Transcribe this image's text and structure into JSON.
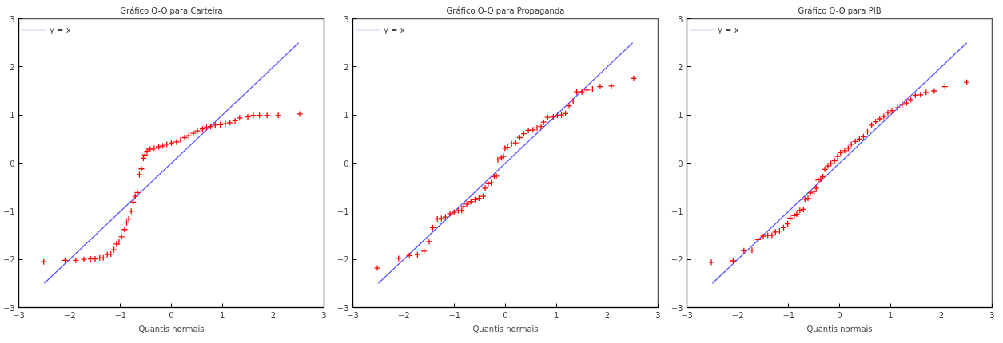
{
  "chart_data": [
    {
      "type": "scatter",
      "title": "Gráfico Q-Q para Carteira",
      "xlabel": "Quantis normais",
      "xlim": [
        -3,
        3
      ],
      "ylim": [
        -3,
        3
      ],
      "xticks": [
        -3,
        -2,
        -1,
        0,
        1,
        2,
        3
      ],
      "yticks": [
        -3,
        -2,
        -1,
        0,
        1,
        2,
        3
      ],
      "grid": false,
      "legend": "top left",
      "series": [
        {
          "type": "line",
          "name": "y = x",
          "color": "#5555ff",
          "x": [
            -2.5,
            2.5
          ],
          "values": [
            -2.5,
            2.5
          ]
        },
        {
          "type": "scatter",
          "color": "#ff0000",
          "marker": "cross",
          "x": [
            -2.51,
            -2.09,
            -1.88,
            -1.72,
            -1.59,
            -1.5,
            -1.41,
            -1.34,
            -1.26,
            -1.19,
            -1.13,
            -1.08,
            -1.03,
            -0.98,
            -0.92,
            -0.88,
            -0.84,
            -0.79,
            -0.75,
            -0.71,
            -0.67,
            -0.63,
            -0.59,
            -0.55,
            -0.52,
            -0.48,
            -0.42,
            -0.34,
            -0.25,
            -0.17,
            -0.09,
            0,
            0.1,
            0.18,
            0.26,
            0.34,
            0.43,
            0.51,
            0.61,
            0.69,
            0.77,
            0.86,
            0.96,
            1.06,
            1.15,
            1.25,
            1.34,
            1.5,
            1.61,
            1.73,
            1.88,
            2.1,
            2.52
          ],
          "values": [
            -2.05,
            -2.02,
            -2.02,
            -2.0,
            -1.99,
            -1.99,
            -1.97,
            -1.97,
            -1.9,
            -1.89,
            -1.8,
            -1.68,
            -1.64,
            -1.53,
            -1.38,
            -1.24,
            -1.16,
            -1.0,
            -0.81,
            -0.69,
            -0.61,
            -0.24,
            -0.12,
            0.1,
            0.17,
            0.25,
            0.29,
            0.31,
            0.34,
            0.36,
            0.39,
            0.42,
            0.44,
            0.48,
            0.53,
            0.57,
            0.62,
            0.67,
            0.71,
            0.74,
            0.76,
            0.79,
            0.8,
            0.82,
            0.84,
            0.88,
            0.94,
            0.96,
            0.99,
            0.99,
            0.99,
            0.99,
            1.02
          ]
        }
      ]
    },
    {
      "type": "scatter",
      "title": "Gráfico Q-Q para Propaganda",
      "xlabel": "Quantis normais",
      "xlim": [
        -3,
        3
      ],
      "ylim": [
        -3,
        3
      ],
      "xticks": [
        -3,
        -2,
        -1,
        0,
        1,
        2,
        3
      ],
      "yticks": [
        -3,
        -2,
        -1,
        0,
        1,
        2,
        3
      ],
      "grid": false,
      "legend": "top left",
      "series": [
        {
          "type": "line",
          "name": "y = x",
          "color": "#5555ff",
          "x": [
            -2.5,
            2.5
          ],
          "values": [
            -2.5,
            2.5
          ]
        },
        {
          "type": "scatter",
          "color": "#ff0000",
          "marker": "cross",
          "x": [
            -2.52,
            -2.1,
            -1.89,
            -1.73,
            -1.6,
            -1.5,
            -1.43,
            -1.34,
            -1.26,
            -1.18,
            -1.09,
            -1.01,
            -0.93,
            -0.86,
            -0.82,
            -0.76,
            -0.68,
            -0.6,
            -0.52,
            -0.44,
            -0.4,
            -0.34,
            -0.28,
            -0.22,
            -0.18,
            -0.15,
            -0.08,
            -0.04,
            -0.01,
            0.04,
            0.12,
            0.2,
            0.28,
            0.36,
            0.45,
            0.54,
            0.62,
            0.7,
            0.75,
            0.83,
            0.94,
            1.02,
            1.1,
            1.18,
            1.25,
            1.33,
            1.4,
            1.5,
            1.6,
            1.71,
            1.86,
            2.08,
            2.52
          ],
          "values": [
            -2.18,
            -1.98,
            -1.92,
            -1.9,
            -1.83,
            -1.63,
            -1.34,
            -1.16,
            -1.15,
            -1.12,
            -1.05,
            -1.02,
            -0.99,
            -0.98,
            -0.9,
            -0.85,
            -0.8,
            -0.76,
            -0.73,
            -0.69,
            -0.52,
            -0.43,
            -0.41,
            -0.28,
            -0.27,
            0.07,
            0.11,
            0.14,
            0.31,
            0.33,
            0.4,
            0.42,
            0.53,
            0.61,
            0.68,
            0.69,
            0.73,
            0.76,
            0.85,
            0.95,
            0.96,
            0.99,
            1.0,
            1.03,
            1.19,
            1.29,
            1.48,
            1.48,
            1.52,
            1.54,
            1.59,
            1.6,
            1.76
          ]
        }
      ]
    },
    {
      "type": "scatter",
      "title": "Gráfico Q-Q para PIB",
      "xlabel": "Quantis normais",
      "xlim": [
        -3,
        3
      ],
      "ylim": [
        -3,
        3
      ],
      "xticks": [
        -3,
        -2,
        -1,
        0,
        1,
        2,
        3
      ],
      "yticks": [
        -3,
        -2,
        -1,
        0,
        1,
        2,
        3
      ],
      "grid": false,
      "legend": "top left",
      "series": [
        {
          "type": "line",
          "name": "y = x",
          "color": "#5555ff",
          "x": [
            -2.5,
            2.5
          ],
          "values": [
            -2.5,
            2.5
          ]
        },
        {
          "type": "scatter",
          "color": "#ff0000",
          "marker": "cross",
          "x": [
            -2.52,
            -2.09,
            -1.88,
            -1.72,
            -1.6,
            -1.5,
            -1.41,
            -1.33,
            -1.26,
            -1.18,
            -1.1,
            -1.02,
            -0.97,
            -0.89,
            -0.84,
            -0.78,
            -0.71,
            -0.68,
            -0.62,
            -0.57,
            -0.5,
            -0.46,
            -0.42,
            -0.37,
            -0.33,
            -0.29,
            -0.23,
            -0.17,
            -0.1,
            -0.04,
            0.02,
            0.1,
            0.17,
            0.23,
            0.31,
            0.39,
            0.47,
            0.55,
            0.63,
            0.71,
            0.79,
            0.87,
            0.95,
            1.03,
            1.14,
            1.23,
            1.32,
            1.4,
            1.49,
            1.59,
            1.7,
            1.86,
            2.07,
            2.5
          ],
          "values": [
            -2.06,
            -2.03,
            -1.82,
            -1.81,
            -1.59,
            -1.52,
            -1.5,
            -1.5,
            -1.43,
            -1.41,
            -1.34,
            -1.26,
            -1.14,
            -1.09,
            -1.06,
            -0.98,
            -0.96,
            -0.75,
            -0.73,
            -0.62,
            -0.59,
            -0.52,
            -0.35,
            -0.33,
            -0.28,
            -0.13,
            -0.06,
            -0.01,
            0.05,
            0.14,
            0.22,
            0.26,
            0.31,
            0.39,
            0.45,
            0.5,
            0.55,
            0.65,
            0.79,
            0.86,
            0.92,
            0.97,
            1.05,
            1.09,
            1.15,
            1.22,
            1.25,
            1.32,
            1.41,
            1.42,
            1.47,
            1.5,
            1.59,
            1.68
          ]
        }
      ]
    }
  ]
}
